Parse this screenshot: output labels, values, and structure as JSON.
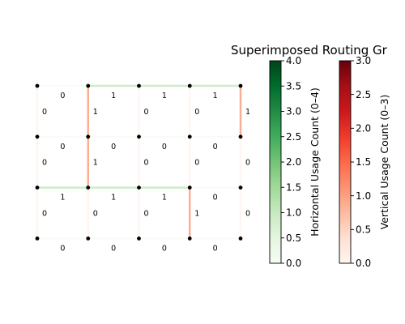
{
  "chart_data": {
    "type": "heatmap",
    "title": "Superimposed Routing Gr",
    "grid": {
      "cols": 5,
      "rows": 4
    },
    "horizontal_edges": {
      "description_rows_top_to_bottom": "row 0 is the top grid line",
      "values": [
        [
          0,
          1,
          1,
          1
        ],
        [
          0,
          0,
          0,
          0
        ],
        [
          1,
          1,
          1,
          0
        ],
        [
          0,
          0,
          0,
          0
        ]
      ]
    },
    "vertical_edges": {
      "description_rows_top_to_bottom": "row 0 spans between grid lines 0 and 1",
      "values": [
        [
          0,
          1,
          0,
          0,
          1
        ],
        [
          0,
          1,
          0,
          0,
          0
        ],
        [
          0,
          0,
          0,
          1,
          0
        ]
      ]
    },
    "colorbars": [
      {
        "name": "horizontal",
        "label": "Horizontal Usage Count (0–4)",
        "range": [
          0,
          4
        ],
        "ticks": [
          "0.0",
          "0.5",
          "1.0",
          "1.5",
          "2.0",
          "2.5",
          "3.0",
          "3.5",
          "4.0"
        ],
        "colormap": "Greens"
      },
      {
        "name": "vertical",
        "label": "Vertical Usage Count (0–3)",
        "range": [
          0,
          3
        ],
        "ticks": [
          "0.0",
          "0.5",
          "1.0",
          "1.5",
          "2.0",
          "2.5",
          "3.0"
        ],
        "colormap": "Reds"
      }
    ]
  },
  "colors": {
    "greens": [
      "#f7fcf5",
      "#e5f5e0",
      "#c7e9c0",
      "#a1d99b",
      "#74c476",
      "#41ab5d",
      "#238b45",
      "#006d2c",
      "#00441b"
    ],
    "reds": [
      "#fff5f0",
      "#fee0d2",
      "#fcbba1",
      "#fc9272",
      "#fb6a4a",
      "#ef3b2c",
      "#cb181d",
      "#a50f15",
      "#67000d"
    ]
  }
}
